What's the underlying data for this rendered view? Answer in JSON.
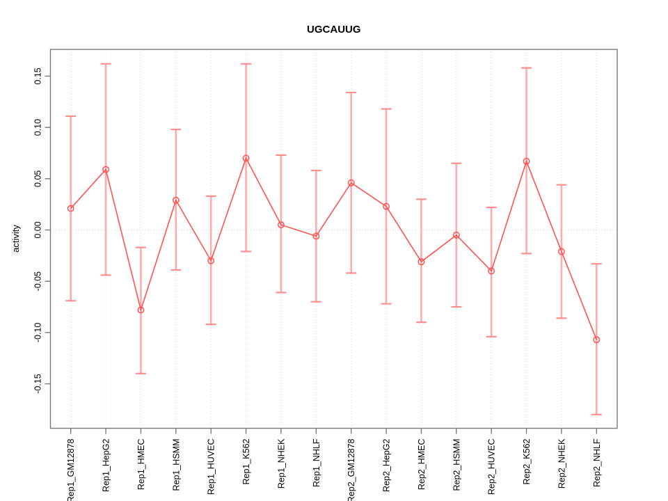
{
  "chart_data": {
    "type": "line",
    "title": "UGCAUUG",
    "xlabel": "",
    "ylabel": "activity",
    "legend": "none",
    "grid": "dotted vertical line at each category; dotted horizontal line at y=0",
    "x_label_rotation_degrees": 90,
    "y_label_rotation_degrees": 90,
    "point_style": "open-circle",
    "error_bars": true,
    "categories": [
      "Rep1_GM12878",
      "Rep1_HepG2",
      "Rep1_HMEC",
      "Rep1_HSMM",
      "Rep1_HUVEC",
      "Rep1_K562",
      "Rep1_NHEK",
      "Rep1_NHLF",
      "Rep2_GM12878",
      "Rep2_HepG2",
      "Rep2_HMEC",
      "Rep2_HSMM",
      "Rep2_HUVEC",
      "Rep2_K562",
      "Rep2_NHEK",
      "Rep2_NHLF"
    ],
    "series": [
      {
        "name": "activity",
        "values": [
          0.021,
          0.059,
          -0.078,
          0.029,
          -0.03,
          0.07,
          0.005,
          -0.006,
          0.046,
          0.023,
          -0.031,
          -0.005,
          -0.04,
          0.067,
          -0.021,
          -0.107
        ],
        "upper": [
          0.111,
          0.162,
          -0.017,
          0.098,
          0.033,
          0.162,
          0.073,
          0.058,
          0.134,
          0.118,
          0.03,
          0.065,
          0.022,
          0.158,
          0.044,
          -0.033
        ],
        "lower": [
          -0.069,
          -0.044,
          -0.14,
          -0.039,
          -0.092,
          -0.021,
          -0.061,
          -0.07,
          -0.042,
          -0.072,
          -0.09,
          -0.075,
          -0.104,
          -0.023,
          -0.086,
          -0.18
        ]
      }
    ],
    "ytick_labels": [
      "0.15",
      "0.10",
      "0.05",
      "0.00",
      "-0.05",
      "-0.10",
      "-0.15"
    ],
    "ylim": [
      -0.193,
      0.176
    ],
    "colors": {
      "point_line": "#ff5252",
      "error_bar": "#ffabab",
      "error_cap": "#ff8f8f",
      "grid": "#d6d6d6",
      "axis": "#7a7a7a",
      "text": "#000000",
      "background": "#ffffff"
    }
  }
}
